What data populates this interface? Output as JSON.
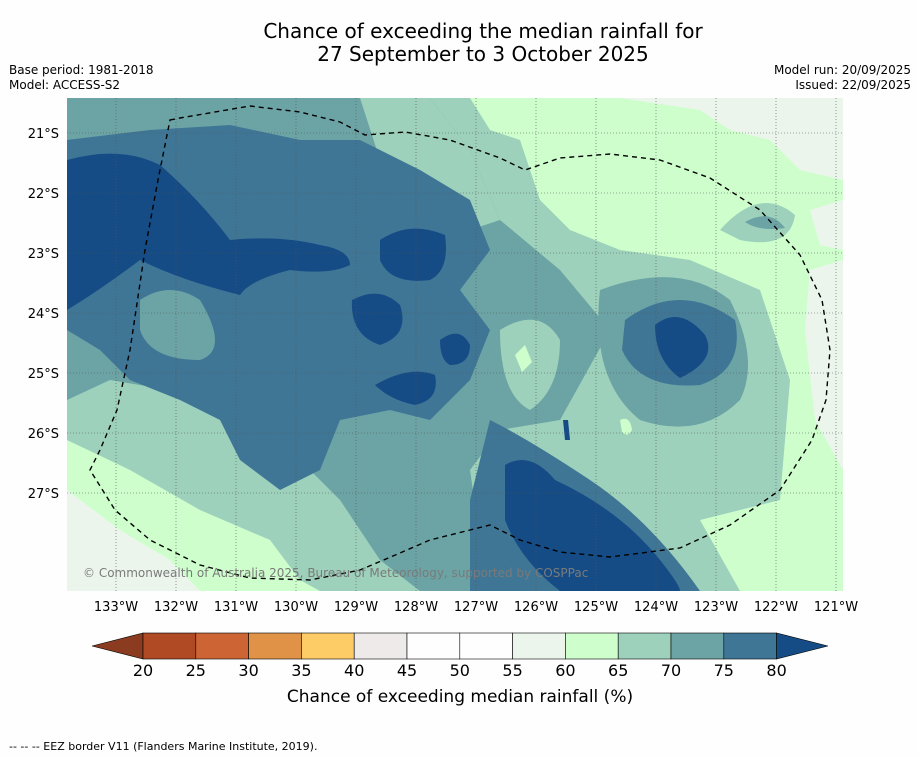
{
  "title_line1": "Chance of exceeding the median rainfall for",
  "title_line2": "27 September to 3 October 2025",
  "base_period": "Base period: 1981-2018",
  "model": "Model: ACCESS-S2",
  "model_run": "Model run: 20/09/2025",
  "issued": "Issued: 22/09/2025",
  "copyright": "© Commonwealth of Australia 2025, Bureau of Meteorology, supported by COSPPac",
  "lat_labels": [
    "21°S",
    "22°S",
    "23°S",
    "24°S",
    "25°S",
    "26°S",
    "27°S"
  ],
  "lon_labels": [
    "133°W",
    "132°W",
    "131°W",
    "130°W",
    "129°W",
    "128°W",
    "127°W",
    "126°W",
    "125°W",
    "124°W",
    "123°W",
    "122°W",
    "121°W"
  ],
  "colorbar": {
    "ticks": [
      "20",
      "25",
      "30",
      "35",
      "40",
      "45",
      "50",
      "55",
      "60",
      "65",
      "70",
      "75",
      "80"
    ],
    "label": "Chance of exceeding median rainfall (%)",
    "colors": [
      "#b04a25",
      "#cc6434",
      "#e09347",
      "#fecc66",
      "#eeeae9",
      "#fefefe",
      "#fefefe",
      "#ecf5ec",
      "#cdfecc",
      "#9dd1bb",
      "#6ca3a5",
      "#3f7696"
    ],
    "under_color": "#8a3b20",
    "over_color": "#154c86"
  },
  "footer": "--  --  -- EEZ border V11 (Flanders Marine Institute, 2019)."
}
